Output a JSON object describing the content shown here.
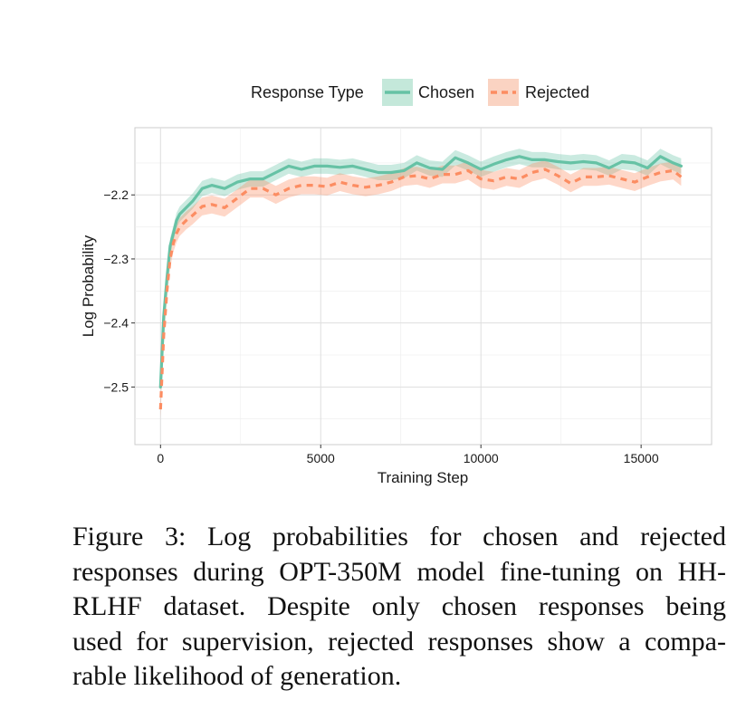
{
  "chart_data": {
    "type": "line",
    "legend": {
      "title": "Response Type",
      "position": "top"
    },
    "xlabel": "Training Step",
    "ylabel": "Log Probability",
    "xlim": [
      -800,
      17200
    ],
    "ylim": [
      -2.59,
      -2.095
    ],
    "x_ticks": [
      0,
      5000,
      10000,
      15000
    ],
    "x_tick_labels": [
      "0",
      "5000",
      "10000",
      "15000"
    ],
    "y_ticks": [
      -2.5,
      -2.4,
      -2.3,
      -2.2
    ],
    "y_tick_labels": [
      "−2.5",
      "−2.4",
      "−2.3",
      "−2.2"
    ],
    "grid": true,
    "colors": {
      "chosen": "#66c2a5",
      "rejected": "#fc8d62"
    },
    "series": [
      {
        "name": "Chosen",
        "style": "solid",
        "band": 0.012,
        "x": [
          0,
          100,
          200,
          300,
          400,
          500,
          600,
          800,
          1000,
          1300,
          1600,
          2000,
          2400,
          2800,
          3200,
          3600,
          4000,
          4400,
          4800,
          5200,
          5600,
          6000,
          6400,
          6800,
          7200,
          7600,
          8000,
          8400,
          8800,
          9200,
          9600,
          10000,
          10400,
          10800,
          11200,
          11600,
          12000,
          12400,
          12800,
          13200,
          13600,
          14000,
          14400,
          14800,
          15200,
          15600,
          16000,
          16250
        ],
        "y": [
          -2.5,
          -2.39,
          -2.33,
          -2.28,
          -2.26,
          -2.24,
          -2.23,
          -2.22,
          -2.21,
          -2.19,
          -2.185,
          -2.19,
          -2.18,
          -2.175,
          -2.175,
          -2.165,
          -2.155,
          -2.16,
          -2.155,
          -2.155,
          -2.157,
          -2.155,
          -2.16,
          -2.165,
          -2.165,
          -2.162,
          -2.15,
          -2.158,
          -2.16,
          -2.142,
          -2.15,
          -2.16,
          -2.152,
          -2.145,
          -2.14,
          -2.145,
          -2.145,
          -2.148,
          -2.15,
          -2.148,
          -2.15,
          -2.158,
          -2.148,
          -2.15,
          -2.158,
          -2.14,
          -2.15,
          -2.155
        ]
      },
      {
        "name": "Rejected",
        "style": "dashed",
        "band": 0.014,
        "x": [
          0,
          100,
          200,
          300,
          400,
          500,
          600,
          800,
          1000,
          1300,
          1600,
          2000,
          2400,
          2800,
          3200,
          3600,
          4000,
          4400,
          4800,
          5200,
          5600,
          6000,
          6400,
          6800,
          7200,
          7600,
          8000,
          8400,
          8800,
          9200,
          9600,
          10000,
          10400,
          10800,
          11200,
          11600,
          12000,
          12400,
          12800,
          13200,
          13600,
          14000,
          14400,
          14800,
          15200,
          15600,
          16000,
          16250
        ],
        "y": [
          -2.535,
          -2.42,
          -2.35,
          -2.3,
          -2.275,
          -2.26,
          -2.25,
          -2.24,
          -2.232,
          -2.218,
          -2.215,
          -2.22,
          -2.205,
          -2.19,
          -2.19,
          -2.2,
          -2.19,
          -2.185,
          -2.185,
          -2.187,
          -2.18,
          -2.185,
          -2.188,
          -2.185,
          -2.18,
          -2.172,
          -2.17,
          -2.175,
          -2.168,
          -2.168,
          -2.162,
          -2.175,
          -2.178,
          -2.172,
          -2.175,
          -2.165,
          -2.16,
          -2.17,
          -2.182,
          -2.172,
          -2.172,
          -2.17,
          -2.175,
          -2.18,
          -2.172,
          -2.165,
          -2.162,
          -2.172
        ]
      }
    ]
  },
  "caption": {
    "lines": [
      "Figure 3: Log probabilities for chosen and rejected",
      "responses during OPT-350M model fine-tuning on HH-",
      "RLHF dataset. Despite only chosen responses being",
      "used for supervision, rejected responses show a compa-",
      "rable likelihood of generation."
    ]
  }
}
